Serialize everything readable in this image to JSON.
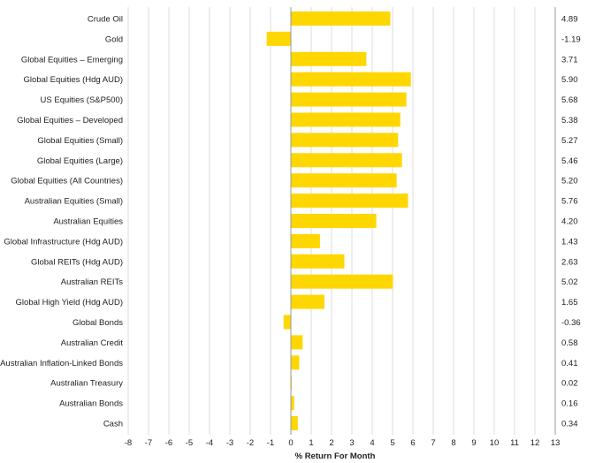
{
  "chart_data": {
    "type": "bar",
    "orientation": "horizontal",
    "title": "",
    "xlabel": "% Return For Month",
    "ylabel": "",
    "xlim": [
      -8,
      13
    ],
    "xticks": [
      "-8",
      "-7",
      "-6",
      "-5",
      "-4",
      "-3",
      "-2",
      "-1",
      "0",
      "1",
      "2",
      "3",
      "4",
      "5",
      "6",
      "7",
      "8",
      "9",
      "10",
      "11",
      "12",
      "13"
    ],
    "grid": "vertical",
    "legend": "none",
    "bar_color": "#FFD700",
    "grid_color": "#DCDCDC",
    "categories": [
      "Crude Oil",
      "Gold",
      "Global Equities – Emerging",
      "Global Equities (Hdg AUD)",
      "US Equities (S&P500)",
      "Global Equities – Developed",
      "Global Equities (Small)",
      "Global Equities (Large)",
      "Global Equities (All Countries)",
      "Australian Equities (Small)",
      "Australian Equities",
      "Global Infrastructure (Hdg AUD)",
      "Global REITs (Hdg AUD)",
      "Australian REITs",
      "Global High Yield (Hdg AUD)",
      "Global Bonds",
      "Australian Credit",
      "Australian Inflation-Linked Bonds",
      "Australian Treasury",
      "Australian Bonds",
      "Cash"
    ],
    "values": [
      4.89,
      -1.19,
      3.71,
      5.9,
      5.68,
      5.38,
      5.27,
      5.46,
      5.2,
      5.76,
      4.2,
      1.43,
      2.63,
      5.02,
      1.65,
      -0.36,
      0.58,
      0.41,
      0.02,
      0.16,
      0.34
    ],
    "value_labels": [
      "4.89",
      "-1.19",
      "3.71",
      "5.90",
      "5.68",
      "5.38",
      "5.27",
      "5.46",
      "5.20",
      "5.76",
      "4.20",
      "1.43",
      "2.63",
      "5.02",
      "1.65",
      "-0.36",
      "0.58",
      "0.41",
      "0.02",
      "0.16",
      "0.34"
    ]
  }
}
